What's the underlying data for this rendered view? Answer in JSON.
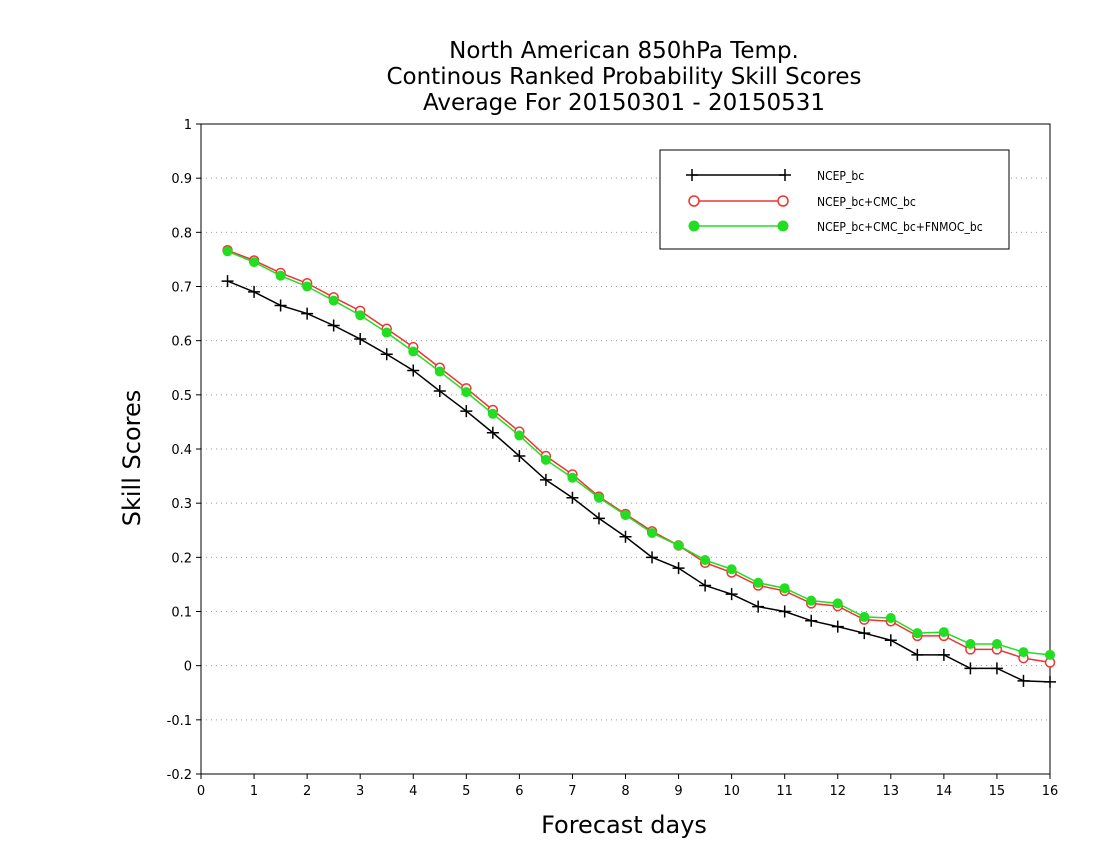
{
  "colors": {
    "ncep_bc": "#000000",
    "ncep_bc_cmc_bc": "#ee3333",
    "ncep_bc_cmc_bc_fnmoc_bc": "#22dd22",
    "grid": "#999999",
    "background": "#ffffff"
  },
  "chart_data": {
    "type": "line",
    "title": [
      "North American 850hPa Temp.",
      "Continous Ranked Probability Skill Scores",
      "Average For 20150301 - 20150531"
    ],
    "xlabel": "Forecast days",
    "ylabel": "Skill Scores",
    "xlim": [
      0,
      16
    ],
    "ylim": [
      -0.2,
      1
    ],
    "x_ticks": [
      0,
      1,
      2,
      3,
      4,
      5,
      6,
      7,
      8,
      9,
      10,
      11,
      12,
      13,
      14,
      15,
      16
    ],
    "x_tick_labels": [
      "0",
      "1",
      "2",
      "3",
      "4",
      "5",
      "6",
      "7",
      "8",
      "9",
      "10",
      "11",
      "12",
      "13",
      "14",
      "15",
      "16"
    ],
    "y_ticks": [
      -0.2,
      -0.1,
      0,
      0.1,
      0.2,
      0.3,
      0.4,
      0.5,
      0.6,
      0.7,
      0.8,
      0.9,
      1
    ],
    "y_tick_labels": [
      "-0.2",
      "-0.1",
      "0",
      "0.1",
      "0.2",
      "0.3",
      "0.4",
      "0.5",
      "0.6",
      "0.7",
      "0.8",
      "0.9",
      "1"
    ],
    "grid": "horizontal dotted",
    "legend_position": "top-right",
    "x": [
      0.5,
      1,
      1.5,
      2,
      2.5,
      3,
      3.5,
      4,
      4.5,
      5,
      5.5,
      6,
      6.5,
      7,
      7.5,
      8,
      8.5,
      9,
      9.5,
      10,
      10.5,
      11,
      11.5,
      12,
      12.5,
      13,
      13.5,
      14,
      14.5,
      15,
      15.5,
      16
    ],
    "series": [
      {
        "name": "NCEP_bc",
        "marker": "plus",
        "color": "#000000",
        "values": [
          0.71,
          0.69,
          0.665,
          0.65,
          0.628,
          0.603,
          0.575,
          0.545,
          0.507,
          0.47,
          0.43,
          0.387,
          0.343,
          0.31,
          0.272,
          0.238,
          0.2,
          0.18,
          0.148,
          0.132,
          0.109,
          0.1,
          0.083,
          0.072,
          0.06,
          0.047,
          0.02,
          0.02,
          -0.005,
          -0.005,
          -0.028,
          -0.03
        ]
      },
      {
        "name": "NCEP_bc+CMC_bc",
        "marker": "open-circle",
        "color": "#ee3333",
        "values": [
          0.767,
          0.748,
          0.725,
          0.706,
          0.68,
          0.655,
          0.622,
          0.588,
          0.55,
          0.512,
          0.472,
          0.432,
          0.387,
          0.353,
          0.312,
          0.28,
          0.248,
          0.222,
          0.19,
          0.172,
          0.148,
          0.138,
          0.115,
          0.11,
          0.085,
          0.082,
          0.055,
          0.055,
          0.03,
          0.03,
          0.014,
          0.006
        ]
      },
      {
        "name": "NCEP_bc+CMC_bc+FNMOC_bc",
        "marker": "filled-circle",
        "color": "#22dd22",
        "values": [
          0.765,
          0.745,
          0.72,
          0.7,
          0.674,
          0.647,
          0.615,
          0.58,
          0.543,
          0.505,
          0.465,
          0.425,
          0.38,
          0.347,
          0.31,
          0.278,
          0.245,
          0.222,
          0.195,
          0.178,
          0.153,
          0.143,
          0.12,
          0.115,
          0.09,
          0.088,
          0.06,
          0.062,
          0.04,
          0.04,
          0.025,
          0.02
        ]
      }
    ]
  }
}
